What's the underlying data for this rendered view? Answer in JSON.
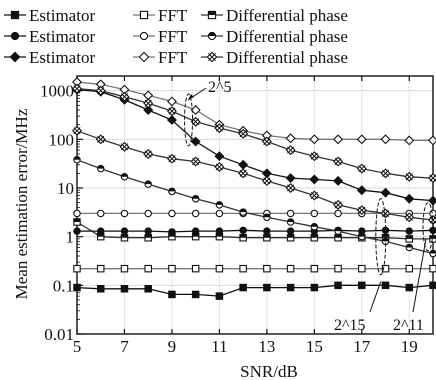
{
  "chart_data": {
    "type": "line",
    "xlabel": "SNR/dB",
    "ylabel": "Mean estimation error/MHz",
    "xlim": [
      5,
      20
    ],
    "ylim": [
      0.01,
      2000
    ],
    "yscale": "log",
    "xticks": [
      5,
      7,
      9,
      11,
      13,
      15,
      17,
      19
    ],
    "xtick_labels": [
      "5",
      "7",
      "9",
      "11",
      "13",
      "15",
      "17",
      "19"
    ],
    "yticks": [
      0.01,
      0.1,
      1,
      10,
      100,
      1000
    ],
    "ytick_labels": [
      "0.01",
      "0.1",
      "1",
      "10",
      "100",
      "1000"
    ],
    "legend_placement": "top",
    "legend": [
      [
        "Estimator",
        "FFT",
        "Differential phase"
      ],
      [
        "Estimator",
        "FFT",
        "Differential phase"
      ],
      [
        "Estimator",
        "FFT",
        "Differential phase"
      ]
    ],
    "annotations": [
      "2^5",
      "2^15",
      "2^11"
    ],
    "x": [
      5,
      6,
      7,
      8,
      9,
      10,
      11,
      12,
      13,
      14,
      15,
      16,
      17,
      18,
      19,
      20
    ],
    "series": [
      {
        "group": 1,
        "marker": "square",
        "fill": "filled",
        "values": [
          0.09,
          0.085,
          0.085,
          0.085,
          0.065,
          0.065,
          0.06,
          0.09,
          0.09,
          0.09,
          0.09,
          0.1,
          0.1,
          0.1,
          0.09,
          0.1
        ]
      },
      {
        "group": 1,
        "marker": "square",
        "fill": "open",
        "values": [
          0.22,
          0.22,
          0.22,
          0.22,
          0.22,
          0.22,
          0.22,
          0.22,
          0.22,
          0.22,
          0.22,
          0.22,
          0.22,
          0.22,
          0.22,
          0.22
        ]
      },
      {
        "group": 1,
        "marker": "square",
        "fill": "half",
        "values": [
          2.0,
          1.0,
          0.95,
          0.95,
          1.0,
          1.0,
          1.0,
          0.95,
          0.95,
          0.95,
          0.95,
          0.95,
          0.95,
          0.95,
          0.9,
          0.9
        ]
      },
      {
        "group": 2,
        "marker": "circle",
        "fill": "filled",
        "values": [
          1.3,
          1.3,
          1.3,
          1.3,
          1.25,
          1.3,
          1.3,
          1.35,
          1.3,
          1.3,
          1.3,
          1.35,
          1.3,
          1.35,
          1.3,
          1.35
        ]
      },
      {
        "group": 2,
        "marker": "circle",
        "fill": "open",
        "values": [
          3.0,
          3.0,
          3.0,
          3.0,
          3.0,
          3.0,
          3.0,
          3.0,
          3.0,
          3.0,
          3.0,
          3.0,
          3.0,
          3.0,
          3.0,
          3.0
        ]
      },
      {
        "group": 2,
        "marker": "circle",
        "fill": "half",
        "values": [
          38,
          25,
          17,
          12,
          8.5,
          6,
          4.5,
          3.2,
          2.5,
          2.0,
          1.6,
          1.3,
          1.0,
          0.8,
          0.6,
          0.45
        ]
      },
      {
        "group": 3,
        "marker": "diamond",
        "fill": "filled",
        "values": [
          1050,
          950,
          650,
          400,
          250,
          90,
          45,
          30,
          20,
          16,
          15,
          14,
          9,
          8,
          6,
          5.5
        ]
      },
      {
        "group": 3,
        "marker": "diamond",
        "fill": "open",
        "values": [
          1500,
          1350,
          1050,
          800,
          600,
          400,
          200,
          150,
          120,
          105,
          100,
          100,
          100,
          100,
          95,
          95
        ]
      },
      {
        "group": 3,
        "marker": "diamond",
        "fill": "half",
        "values": [
          150,
          100,
          70,
          50,
          40,
          35,
          27,
          20,
          14,
          10,
          7,
          4.5,
          3.5,
          3.0,
          2.5,
          2.2
        ]
      },
      {
        "group": 3,
        "marker": "diamond",
        "fill": "half",
        "values": [
          1100,
          1000,
          750,
          550,
          380,
          230,
          170,
          130,
          90,
          60,
          45,
          35,
          25,
          20,
          17,
          16
        ]
      }
    ]
  }
}
